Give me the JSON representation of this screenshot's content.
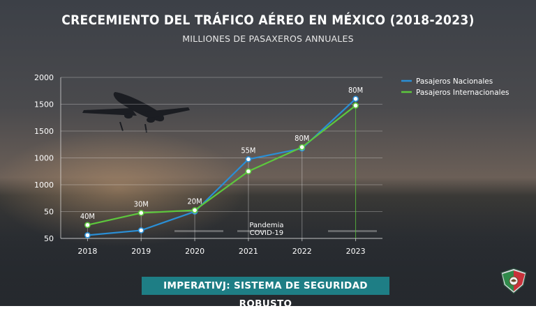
{
  "title": "CRECEMIENTO DEL TRÁFICO AÉREO EN MÉXICO (2018-2023)",
  "subtitle": "MILLIONES DE PASAXEROS ANNUALES",
  "banner": "IMPERATIVJ: SISTEMA DE SEGURIDAD ROBUSTO",
  "colors": {
    "nacional": "#2a8fd6",
    "internacional": "#5dc83d",
    "banner_bg": "#1e7e85"
  },
  "icons": {
    "background": "airplane-takeoff-photo",
    "logo": "shield-eagle-logo"
  },
  "chart_data": {
    "type": "line",
    "categories": [
      "2018",
      "2019",
      "2020",
      "2021",
      "2022",
      "2023"
    ],
    "y_tick_labels": [
      "50",
      "50",
      "1000",
      "1000",
      "1500",
      "1500",
      "2000"
    ],
    "grid": true,
    "legend_position": "top-right",
    "series": [
      {
        "name": "Pasajeros Nacionales",
        "values": [
          0.12,
          0.3,
          1.0,
          2.95,
          3.35,
          5.2
        ]
      },
      {
        "name": "Pasajeros Internacionales",
        "values": [
          0.5,
          0.95,
          1.05,
          2.5,
          3.4,
          4.95
        ]
      }
    ],
    "data_labels": [
      {
        "category": "2018",
        "text": "40M"
      },
      {
        "category": "2019",
        "text": "30M"
      },
      {
        "category": "2020",
        "text": "20M"
      },
      {
        "category": "2021",
        "text": "55M"
      },
      {
        "category": "2022",
        "text": "80M"
      },
      {
        "category": "2023",
        "text": "80M"
      }
    ],
    "annotation": {
      "category": "2021",
      "lines": [
        "Pandemia",
        "COVID-19"
      ]
    }
  }
}
